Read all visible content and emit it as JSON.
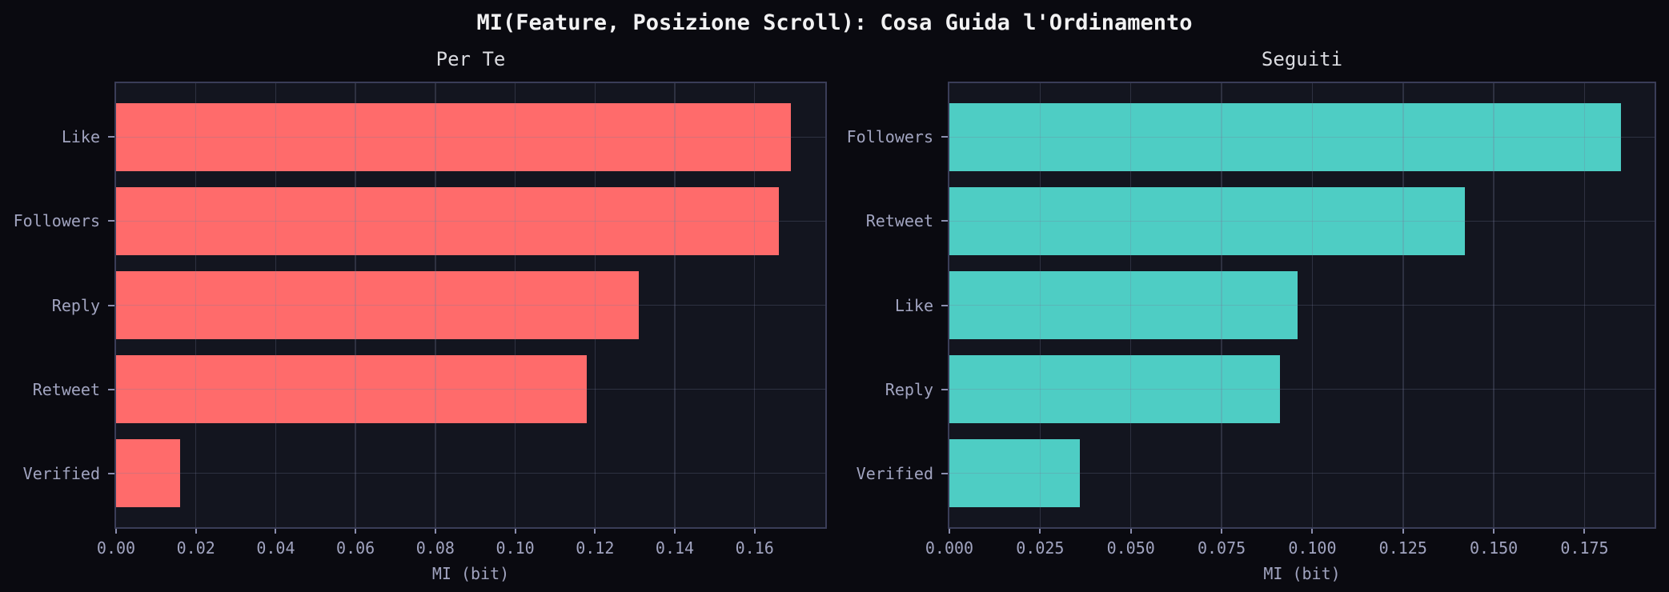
{
  "page_title": "MI(Feature, Posizione Scroll): Cosa Guida l'Ordinamento",
  "colors": {
    "background": "#0a0a10",
    "plot_background": "#13151f",
    "spine": "#3a3d58",
    "grid": "rgba(118,122,155,0.28)",
    "bar_red": "#ff6b6b",
    "bar_teal": "#4ecdc4",
    "title_text": "#f2f2f3",
    "subtitle_text": "#dadbe0",
    "tick_text": "#a1a4c0"
  },
  "chart_data": [
    {
      "type": "bar",
      "orientation": "horizontal",
      "title": "Per Te",
      "categories": [
        "Like",
        "Followers",
        "Reply",
        "Retweet",
        "Verified"
      ],
      "values": [
        0.169,
        0.166,
        0.131,
        0.118,
        0.016
      ],
      "xlabel": "MI (bit)",
      "xlim": [
        0,
        0.1777
      ],
      "xticks": [
        0,
        0.02,
        0.04,
        0.06,
        0.08,
        0.1,
        0.12,
        0.14,
        0.16
      ],
      "xtick_labels": [
        "0.00",
        "0.02",
        "0.04",
        "0.06",
        "0.08",
        "0.10",
        "0.12",
        "0.14",
        "0.16"
      ],
      "bar_color": "#ff6b6b",
      "grid": true,
      "legend": "none"
    },
    {
      "type": "bar",
      "orientation": "horizontal",
      "title": "Seguiti",
      "categories": [
        "Followers",
        "Retweet",
        "Like",
        "Reply",
        "Verified"
      ],
      "values": [
        0.185,
        0.142,
        0.096,
        0.091,
        0.036
      ],
      "xlabel": "MI (bit)",
      "xlim": [
        0,
        0.1943
      ],
      "xticks": [
        0,
        0.025,
        0.05,
        0.075,
        0.1,
        0.125,
        0.15,
        0.175
      ],
      "xtick_labels": [
        "0.000",
        "0.025",
        "0.050",
        "0.075",
        "0.100",
        "0.125",
        "0.150",
        "0.175"
      ],
      "bar_color": "#4ecdc4",
      "grid": true,
      "legend": "none"
    }
  ]
}
